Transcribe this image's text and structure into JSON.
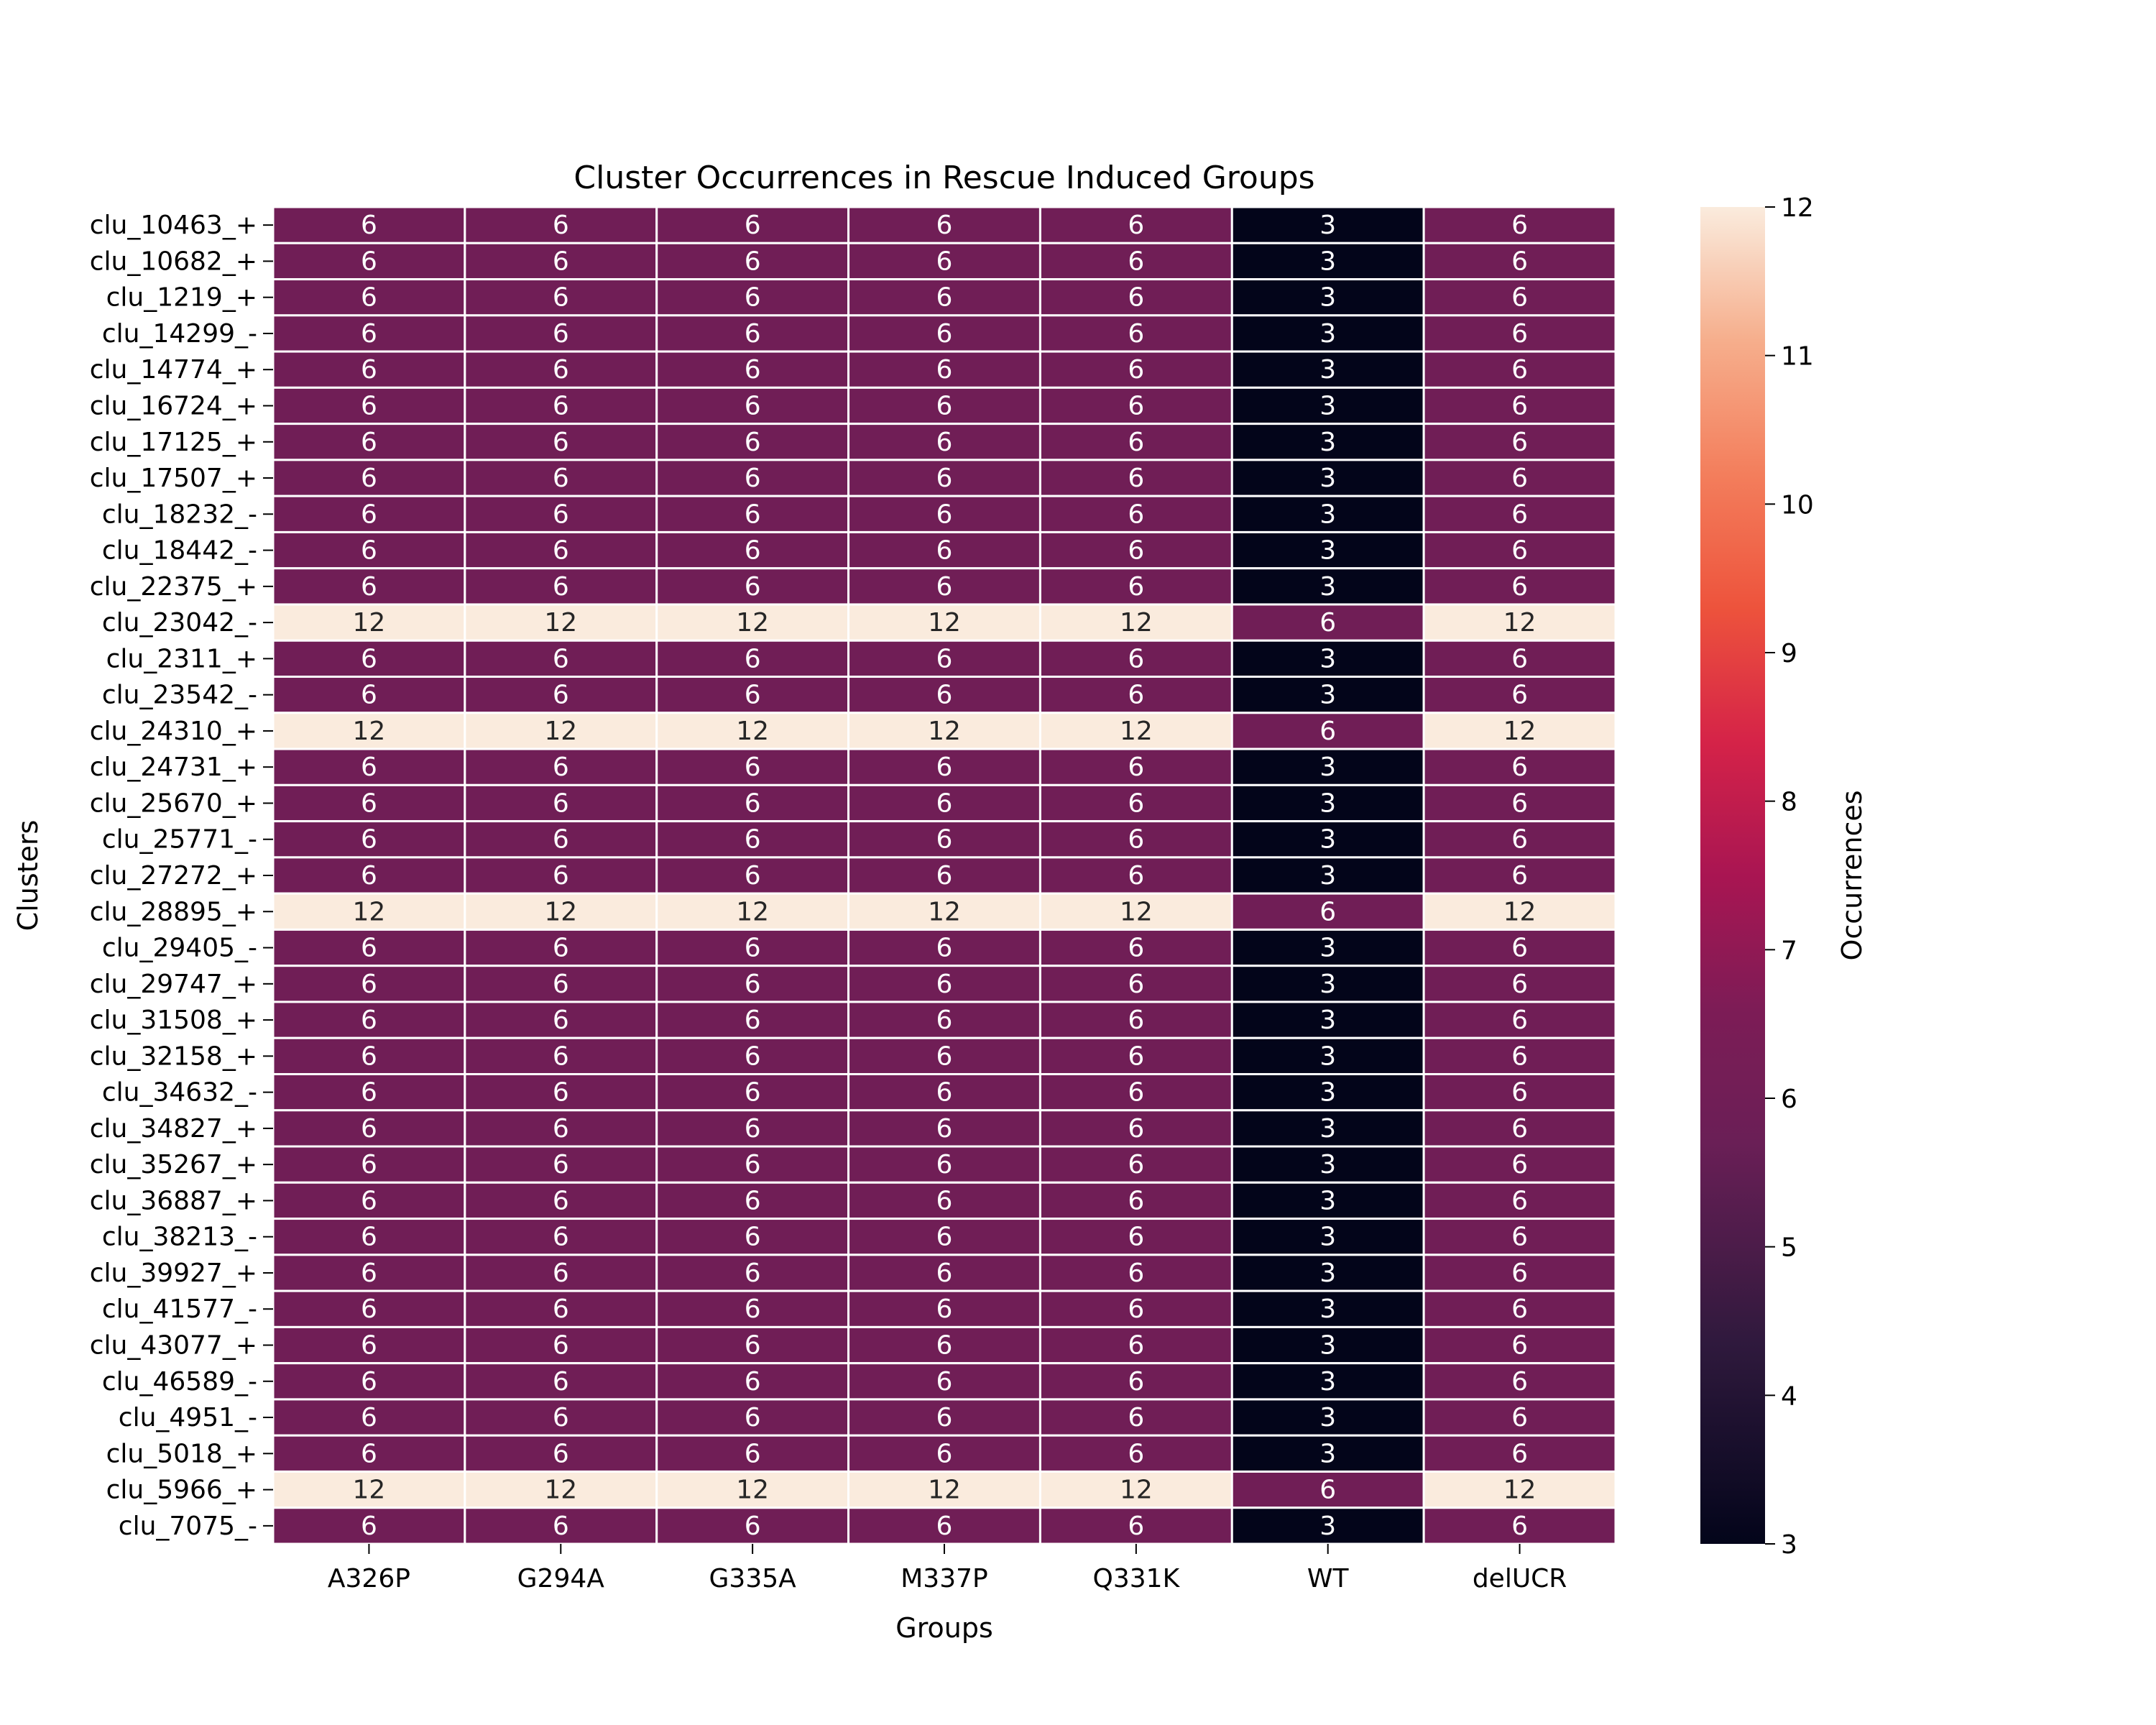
{
  "chart_data": {
    "type": "heatmap",
    "title": "Cluster Occurrences in Rescue Induced Groups",
    "xlabel": "Groups",
    "ylabel": "Clusters",
    "colorbar_label": "Occurrences",
    "colorbar_range": [
      3,
      12
    ],
    "colorbar_ticks": [
      "3",
      "4",
      "5",
      "6",
      "7",
      "8",
      "9",
      "10",
      "11",
      "12"
    ],
    "colormap": "rocket",
    "columns": [
      "A326P",
      "G294A",
      "G335A",
      "M337P",
      "Q331K",
      "WT",
      "delUCR"
    ],
    "rows": [
      {
        "label": "clu_10463_+",
        "values": [
          6,
          6,
          6,
          6,
          6,
          3,
          6
        ]
      },
      {
        "label": "clu_10682_+",
        "values": [
          6,
          6,
          6,
          6,
          6,
          3,
          6
        ]
      },
      {
        "label": "clu_1219_+",
        "values": [
          6,
          6,
          6,
          6,
          6,
          3,
          6
        ]
      },
      {
        "label": "clu_14299_-",
        "values": [
          6,
          6,
          6,
          6,
          6,
          3,
          6
        ]
      },
      {
        "label": "clu_14774_+",
        "values": [
          6,
          6,
          6,
          6,
          6,
          3,
          6
        ]
      },
      {
        "label": "clu_16724_+",
        "values": [
          6,
          6,
          6,
          6,
          6,
          3,
          6
        ]
      },
      {
        "label": "clu_17125_+",
        "values": [
          6,
          6,
          6,
          6,
          6,
          3,
          6
        ]
      },
      {
        "label": "clu_17507_+",
        "values": [
          6,
          6,
          6,
          6,
          6,
          3,
          6
        ]
      },
      {
        "label": "clu_18232_-",
        "values": [
          6,
          6,
          6,
          6,
          6,
          3,
          6
        ]
      },
      {
        "label": "clu_18442_-",
        "values": [
          6,
          6,
          6,
          6,
          6,
          3,
          6
        ]
      },
      {
        "label": "clu_22375_+",
        "values": [
          6,
          6,
          6,
          6,
          6,
          3,
          6
        ]
      },
      {
        "label": "clu_23042_-",
        "values": [
          12,
          12,
          12,
          12,
          12,
          6,
          12
        ]
      },
      {
        "label": "clu_2311_+",
        "values": [
          6,
          6,
          6,
          6,
          6,
          3,
          6
        ]
      },
      {
        "label": "clu_23542_-",
        "values": [
          6,
          6,
          6,
          6,
          6,
          3,
          6
        ]
      },
      {
        "label": "clu_24310_+",
        "values": [
          12,
          12,
          12,
          12,
          12,
          6,
          12
        ]
      },
      {
        "label": "clu_24731_+",
        "values": [
          6,
          6,
          6,
          6,
          6,
          3,
          6
        ]
      },
      {
        "label": "clu_25670_+",
        "values": [
          6,
          6,
          6,
          6,
          6,
          3,
          6
        ]
      },
      {
        "label": "clu_25771_-",
        "values": [
          6,
          6,
          6,
          6,
          6,
          3,
          6
        ]
      },
      {
        "label": "clu_27272_+",
        "values": [
          6,
          6,
          6,
          6,
          6,
          3,
          6
        ]
      },
      {
        "label": "clu_28895_+",
        "values": [
          12,
          12,
          12,
          12,
          12,
          6,
          12
        ]
      },
      {
        "label": "clu_29405_-",
        "values": [
          6,
          6,
          6,
          6,
          6,
          3,
          6
        ]
      },
      {
        "label": "clu_29747_+",
        "values": [
          6,
          6,
          6,
          6,
          6,
          3,
          6
        ]
      },
      {
        "label": "clu_31508_+",
        "values": [
          6,
          6,
          6,
          6,
          6,
          3,
          6
        ]
      },
      {
        "label": "clu_32158_+",
        "values": [
          6,
          6,
          6,
          6,
          6,
          3,
          6
        ]
      },
      {
        "label": "clu_34632_-",
        "values": [
          6,
          6,
          6,
          6,
          6,
          3,
          6
        ]
      },
      {
        "label": "clu_34827_+",
        "values": [
          6,
          6,
          6,
          6,
          6,
          3,
          6
        ]
      },
      {
        "label": "clu_35267_+",
        "values": [
          6,
          6,
          6,
          6,
          6,
          3,
          6
        ]
      },
      {
        "label": "clu_36887_+",
        "values": [
          6,
          6,
          6,
          6,
          6,
          3,
          6
        ]
      },
      {
        "label": "clu_38213_-",
        "values": [
          6,
          6,
          6,
          6,
          6,
          3,
          6
        ]
      },
      {
        "label": "clu_39927_+",
        "values": [
          6,
          6,
          6,
          6,
          6,
          3,
          6
        ]
      },
      {
        "label": "clu_41577_-",
        "values": [
          6,
          6,
          6,
          6,
          6,
          3,
          6
        ]
      },
      {
        "label": "clu_43077_+",
        "values": [
          6,
          6,
          6,
          6,
          6,
          3,
          6
        ]
      },
      {
        "label": "clu_46589_-",
        "values": [
          6,
          6,
          6,
          6,
          6,
          3,
          6
        ]
      },
      {
        "label": "clu_4951_-",
        "values": [
          6,
          6,
          6,
          6,
          6,
          3,
          6
        ]
      },
      {
        "label": "clu_5018_+",
        "values": [
          6,
          6,
          6,
          6,
          6,
          3,
          6
        ]
      },
      {
        "label": "clu_5966_+",
        "values": [
          12,
          12,
          12,
          12,
          12,
          6,
          12
        ]
      },
      {
        "label": "clu_7075_-",
        "values": [
          6,
          6,
          6,
          6,
          6,
          3,
          6
        ]
      }
    ]
  }
}
